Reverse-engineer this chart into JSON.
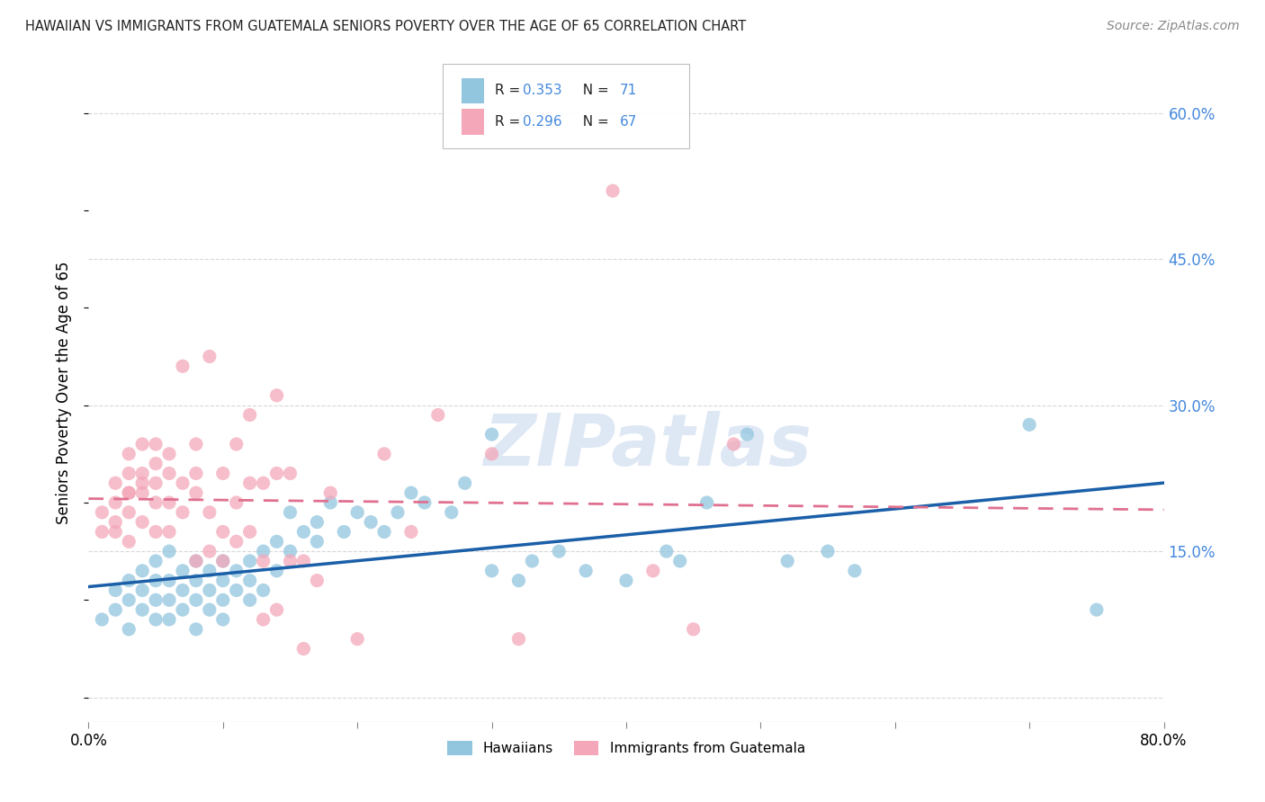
{
  "title": "HAWAIIAN VS IMMIGRANTS FROM GUATEMALA SENIORS POVERTY OVER THE AGE OF 65 CORRELATION CHART",
  "source": "Source: ZipAtlas.com",
  "ylabel": "Seniors Poverty Over the Age of 65",
  "xlim": [
    0.0,
    0.8
  ],
  "ylim": [
    -0.025,
    0.65
  ],
  "xtick_positions": [
    0.0,
    0.1,
    0.2,
    0.3,
    0.4,
    0.5,
    0.6,
    0.7,
    0.8
  ],
  "xticklabels": [
    "0.0%",
    "",
    "",
    "",
    "",
    "",
    "",
    "",
    "80.0%"
  ],
  "ytick_positions": [
    0.0,
    0.15,
    0.3,
    0.45,
    0.6
  ],
  "yticklabels_right": [
    "",
    "15.0%",
    "30.0%",
    "45.0%",
    "60.0%"
  ],
  "hawaiian_color": "#92c5de",
  "guatemala_color": "#f4a7b9",
  "hawaiian_line_color": "#1a5fa8",
  "guatemala_line_color": "#e07090",
  "R_hawaiian": 0.353,
  "N_hawaiian": 71,
  "R_guatemala": 0.296,
  "N_guatemala": 67,
  "hawaiian_scatter": [
    [
      0.01,
      0.08
    ],
    [
      0.02,
      0.09
    ],
    [
      0.02,
      0.11
    ],
    [
      0.03,
      0.07
    ],
    [
      0.03,
      0.1
    ],
    [
      0.03,
      0.12
    ],
    [
      0.04,
      0.09
    ],
    [
      0.04,
      0.11
    ],
    [
      0.04,
      0.13
    ],
    [
      0.05,
      0.08
    ],
    [
      0.05,
      0.1
    ],
    [
      0.05,
      0.12
    ],
    [
      0.05,
      0.14
    ],
    [
      0.06,
      0.1
    ],
    [
      0.06,
      0.12
    ],
    [
      0.06,
      0.15
    ],
    [
      0.06,
      0.08
    ],
    [
      0.07,
      0.11
    ],
    [
      0.07,
      0.13
    ],
    [
      0.07,
      0.09
    ],
    [
      0.08,
      0.1
    ],
    [
      0.08,
      0.12
    ],
    [
      0.08,
      0.14
    ],
    [
      0.08,
      0.07
    ],
    [
      0.09,
      0.11
    ],
    [
      0.09,
      0.13
    ],
    [
      0.09,
      0.09
    ],
    [
      0.1,
      0.12
    ],
    [
      0.1,
      0.14
    ],
    [
      0.1,
      0.08
    ],
    [
      0.1,
      0.1
    ],
    [
      0.11,
      0.13
    ],
    [
      0.11,
      0.11
    ],
    [
      0.12,
      0.14
    ],
    [
      0.12,
      0.12
    ],
    [
      0.12,
      0.1
    ],
    [
      0.13,
      0.15
    ],
    [
      0.13,
      0.11
    ],
    [
      0.14,
      0.16
    ],
    [
      0.14,
      0.13
    ],
    [
      0.15,
      0.15
    ],
    [
      0.15,
      0.19
    ],
    [
      0.16,
      0.17
    ],
    [
      0.17,
      0.16
    ],
    [
      0.17,
      0.18
    ],
    [
      0.18,
      0.2
    ],
    [
      0.19,
      0.17
    ],
    [
      0.2,
      0.19
    ],
    [
      0.21,
      0.18
    ],
    [
      0.22,
      0.17
    ],
    [
      0.23,
      0.19
    ],
    [
      0.24,
      0.21
    ],
    [
      0.25,
      0.2
    ],
    [
      0.27,
      0.19
    ],
    [
      0.28,
      0.22
    ],
    [
      0.3,
      0.13
    ],
    [
      0.3,
      0.27
    ],
    [
      0.32,
      0.12
    ],
    [
      0.33,
      0.14
    ],
    [
      0.35,
      0.15
    ],
    [
      0.37,
      0.13
    ],
    [
      0.4,
      0.12
    ],
    [
      0.43,
      0.15
    ],
    [
      0.44,
      0.14
    ],
    [
      0.46,
      0.2
    ],
    [
      0.49,
      0.27
    ],
    [
      0.52,
      0.14
    ],
    [
      0.55,
      0.15
    ],
    [
      0.57,
      0.13
    ],
    [
      0.7,
      0.28
    ],
    [
      0.75,
      0.09
    ]
  ],
  "guatemala_scatter": [
    [
      0.01,
      0.17
    ],
    [
      0.01,
      0.19
    ],
    [
      0.02,
      0.17
    ],
    [
      0.02,
      0.18
    ],
    [
      0.02,
      0.2
    ],
    [
      0.02,
      0.22
    ],
    [
      0.03,
      0.16
    ],
    [
      0.03,
      0.19
    ],
    [
      0.03,
      0.21
    ],
    [
      0.03,
      0.23
    ],
    [
      0.03,
      0.25
    ],
    [
      0.03,
      0.21
    ],
    [
      0.04,
      0.18
    ],
    [
      0.04,
      0.21
    ],
    [
      0.04,
      0.23
    ],
    [
      0.04,
      0.26
    ],
    [
      0.04,
      0.22
    ],
    [
      0.05,
      0.17
    ],
    [
      0.05,
      0.2
    ],
    [
      0.05,
      0.22
    ],
    [
      0.05,
      0.24
    ],
    [
      0.05,
      0.26
    ],
    [
      0.06,
      0.17
    ],
    [
      0.06,
      0.2
    ],
    [
      0.06,
      0.23
    ],
    [
      0.06,
      0.25
    ],
    [
      0.07,
      0.19
    ],
    [
      0.07,
      0.22
    ],
    [
      0.07,
      0.34
    ],
    [
      0.08,
      0.14
    ],
    [
      0.08,
      0.21
    ],
    [
      0.08,
      0.23
    ],
    [
      0.08,
      0.26
    ],
    [
      0.09,
      0.15
    ],
    [
      0.09,
      0.19
    ],
    [
      0.09,
      0.35
    ],
    [
      0.1,
      0.14
    ],
    [
      0.1,
      0.17
    ],
    [
      0.1,
      0.23
    ],
    [
      0.11,
      0.16
    ],
    [
      0.11,
      0.2
    ],
    [
      0.11,
      0.26
    ],
    [
      0.12,
      0.17
    ],
    [
      0.12,
      0.22
    ],
    [
      0.12,
      0.29
    ],
    [
      0.13,
      0.08
    ],
    [
      0.13,
      0.14
    ],
    [
      0.13,
      0.22
    ],
    [
      0.14,
      0.09
    ],
    [
      0.14,
      0.23
    ],
    [
      0.14,
      0.31
    ],
    [
      0.15,
      0.14
    ],
    [
      0.15,
      0.23
    ],
    [
      0.16,
      0.05
    ],
    [
      0.16,
      0.14
    ],
    [
      0.17,
      0.12
    ],
    [
      0.18,
      0.21
    ],
    [
      0.2,
      0.06
    ],
    [
      0.22,
      0.25
    ],
    [
      0.24,
      0.17
    ],
    [
      0.26,
      0.29
    ],
    [
      0.3,
      0.25
    ],
    [
      0.32,
      0.06
    ],
    [
      0.39,
      0.52
    ],
    [
      0.42,
      0.13
    ],
    [
      0.45,
      0.07
    ],
    [
      0.48,
      0.26
    ]
  ],
  "watermark_text": "ZIPatlas",
  "legend_blue_label": "R = 0.353   N = 71",
  "legend_pink_label": "R = 0.296   N = 67",
  "bottom_legend_1": "Hawaiians",
  "bottom_legend_2": "Immigrants from Guatemala",
  "background_color": "#ffffff",
  "grid_color": "#d8d8d8",
  "right_tick_color": "#4488dd"
}
